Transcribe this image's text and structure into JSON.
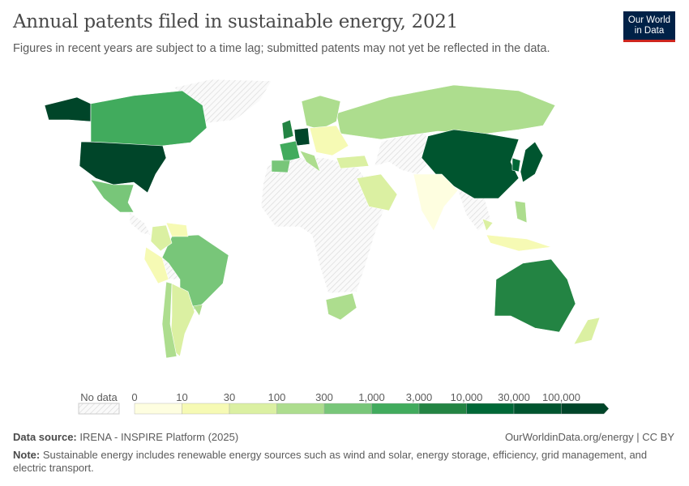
{
  "header": {
    "title": "Annual patents filed in sustainable energy, 2021",
    "subtitle": "Figures in recent years are subject to a time lag; submitted patents may not yet be reflected in the data.",
    "logo": "Our World in Data"
  },
  "legend": {
    "no_data_label": "No data",
    "ticks": [
      "0",
      "10",
      "30",
      "100",
      "300",
      "1,000",
      "3,000",
      "10,000",
      "30,000",
      "100,000"
    ],
    "colors": [
      "#fefee0",
      "#f6fab4",
      "#dbf0a2",
      "#addd8e",
      "#78c679",
      "#41ab5d",
      "#238443",
      "#006837",
      "#00552f",
      "#004529"
    ],
    "no_data_color": "#e0e0e0"
  },
  "map_data": {
    "United States": 9,
    "Alaska": 9,
    "Canada": 5,
    "Mexico": 4,
    "Brazil": 4,
    "Argentina": 2,
    "Chile": 3,
    "Peru": 1,
    "Colombia": 2,
    "Venezuela": 1,
    "Uruguay": 3,
    "Russia": 3,
    "China": 8,
    "Japan": 8,
    "South Korea": 7,
    "India": 0,
    "Australia": 6,
    "New Zealand": 2,
    "South Africa": 3,
    "Saudi Arabia": 2,
    "Germany": 9,
    "France": 5,
    "United Kingdom": 6,
    "Spain": 4,
    "Italy": 3,
    "Nordics": 3,
    "Eastern Europe": 1,
    "Turkey": 2,
    "Philippines": 3,
    "Indonesia": 1,
    "Malaysia": 2
  },
  "footer": {
    "source_label": "Data source:",
    "source": "IRENA - INSPIRE Platform (2025)",
    "url": "OurWorldinData.org/energy | CC BY",
    "note_label": "Note:",
    "note": "Sustainable energy includes renewable energy sources such as wind and solar, energy storage, efficiency, grid management, and electric transport."
  }
}
